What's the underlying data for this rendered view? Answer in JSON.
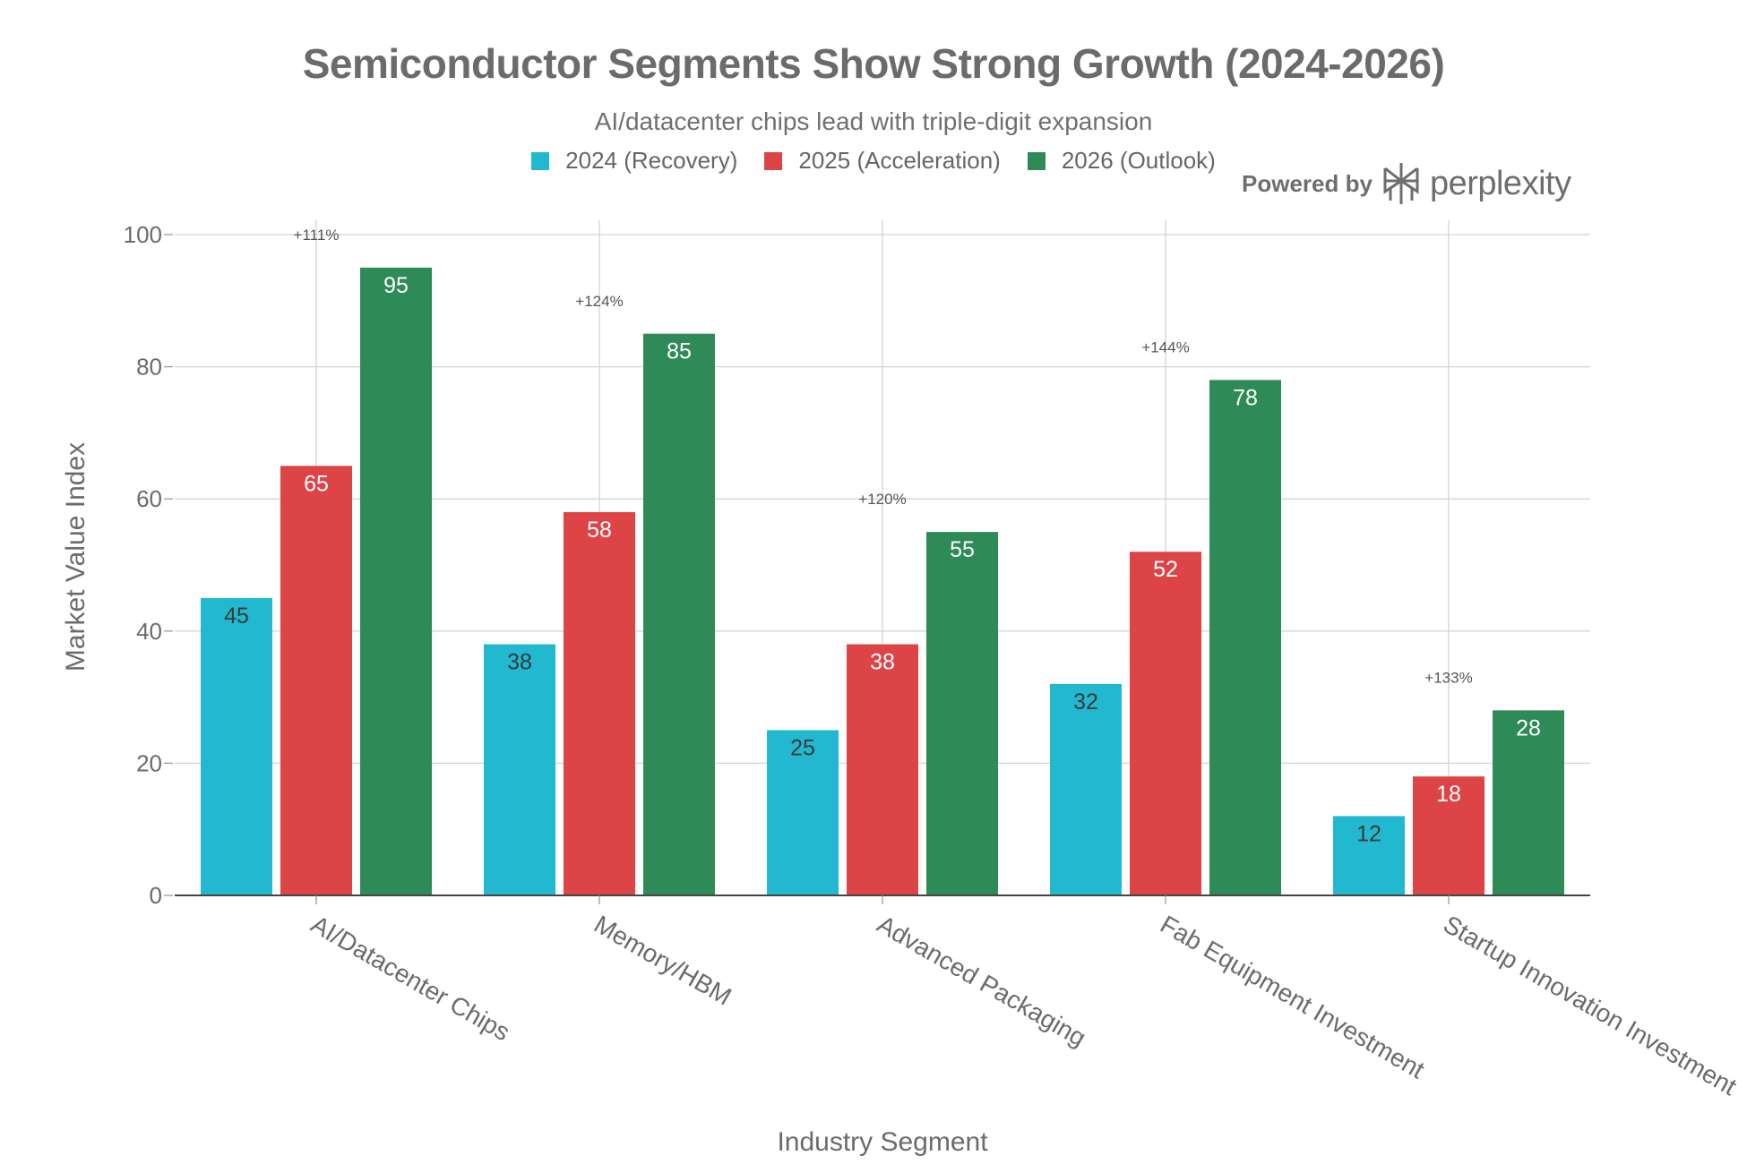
{
  "brand": {
    "powered_by": "Powered by",
    "name": "perplexity",
    "icon": "perplexity-logo-icon"
  },
  "chart_data": {
    "type": "bar",
    "title": "Semiconductor Segments Show Strong Growth (2024-2026)",
    "subtitle": "AI/datacenter chips lead with triple-digit expansion",
    "xlabel": "Industry Segment",
    "ylabel": "Market Value Index",
    "ylim": [
      0,
      100
    ],
    "yticks": [
      0,
      20,
      40,
      60,
      80,
      100
    ],
    "grid": true,
    "legend_position": "top-center",
    "categories": [
      "AI/Datacenter Chips",
      "Memory/HBM",
      "Advanced Packaging",
      "Fab Equipment Investment",
      "Startup Innovation Investment"
    ],
    "series": [
      {
        "name": "2024 (Recovery)",
        "color": "#22b8cf",
        "label_color": "#3a3a3a",
        "values": [
          45,
          38,
          25,
          32,
          12
        ]
      },
      {
        "name": "2025 (Acceleration)",
        "color": "#dc4446",
        "label_color": "#ffffff",
        "values": [
          65,
          58,
          38,
          52,
          18
        ]
      },
      {
        "name": "2026 (Outlook)",
        "color": "#2e8b57",
        "label_color": "#ffffff",
        "values": [
          95,
          85,
          55,
          78,
          28
        ]
      }
    ],
    "annotations": [
      {
        "category": "AI/Datacenter Chips",
        "text": "+111%",
        "y": 100
      },
      {
        "category": "Memory/HBM",
        "text": "+124%",
        "y": 90
      },
      {
        "category": "Advanced Packaging",
        "text": "+120%",
        "y": 60
      },
      {
        "category": "Fab Equipment Investment",
        "text": "+144%",
        "y": 83
      },
      {
        "category": "Startup Innovation Investment",
        "text": "+133%",
        "y": 33
      }
    ]
  }
}
